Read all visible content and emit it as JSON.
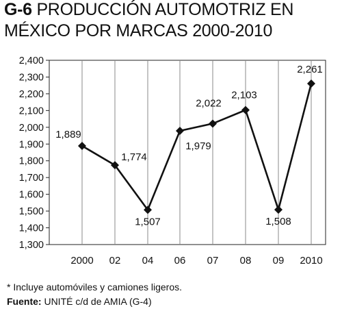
{
  "header": {
    "code": "G-6",
    "line1": "PRODUCCIÓN AUTOMOTRIZ EN",
    "line2": "MÉXICO POR MARCAS 2000-2010"
  },
  "chart_data": {
    "type": "line",
    "categories": [
      "2000",
      "02",
      "04",
      "06",
      "07",
      "08",
      "09",
      "2010"
    ],
    "series": [
      {
        "values": [
          1889,
          1774,
          1507,
          1979,
          2022,
          2103,
          1508,
          2261
        ]
      }
    ],
    "data_labels": [
      "1,889",
      "1,774",
      "1,507",
      "1,979",
      "2,022",
      "2,103",
      "1,508",
      "2,261"
    ],
    "ylim": [
      1300,
      2400
    ],
    "yticks": [
      1300,
      1400,
      1500,
      1600,
      1700,
      1800,
      1900,
      2000,
      2100,
      2200,
      2300,
      2400
    ],
    "ytick_labels": [
      "1,300",
      "1,400",
      "1,500",
      "1,600",
      "1,700",
      "1,800",
      "1,900",
      "2,000",
      "2,100",
      "2,200",
      "2,300",
      "2,400"
    ],
    "grid": "vertical",
    "marker": "diamond",
    "line_color": "#111111",
    "grid_color": "#8a8a8a"
  },
  "footer": {
    "footnote": "* Incluye automóviles y camiones ligeros.",
    "source_label": "Fuente:",
    "source_text": " UNITÉ c/d de AMIA (G-4)"
  }
}
